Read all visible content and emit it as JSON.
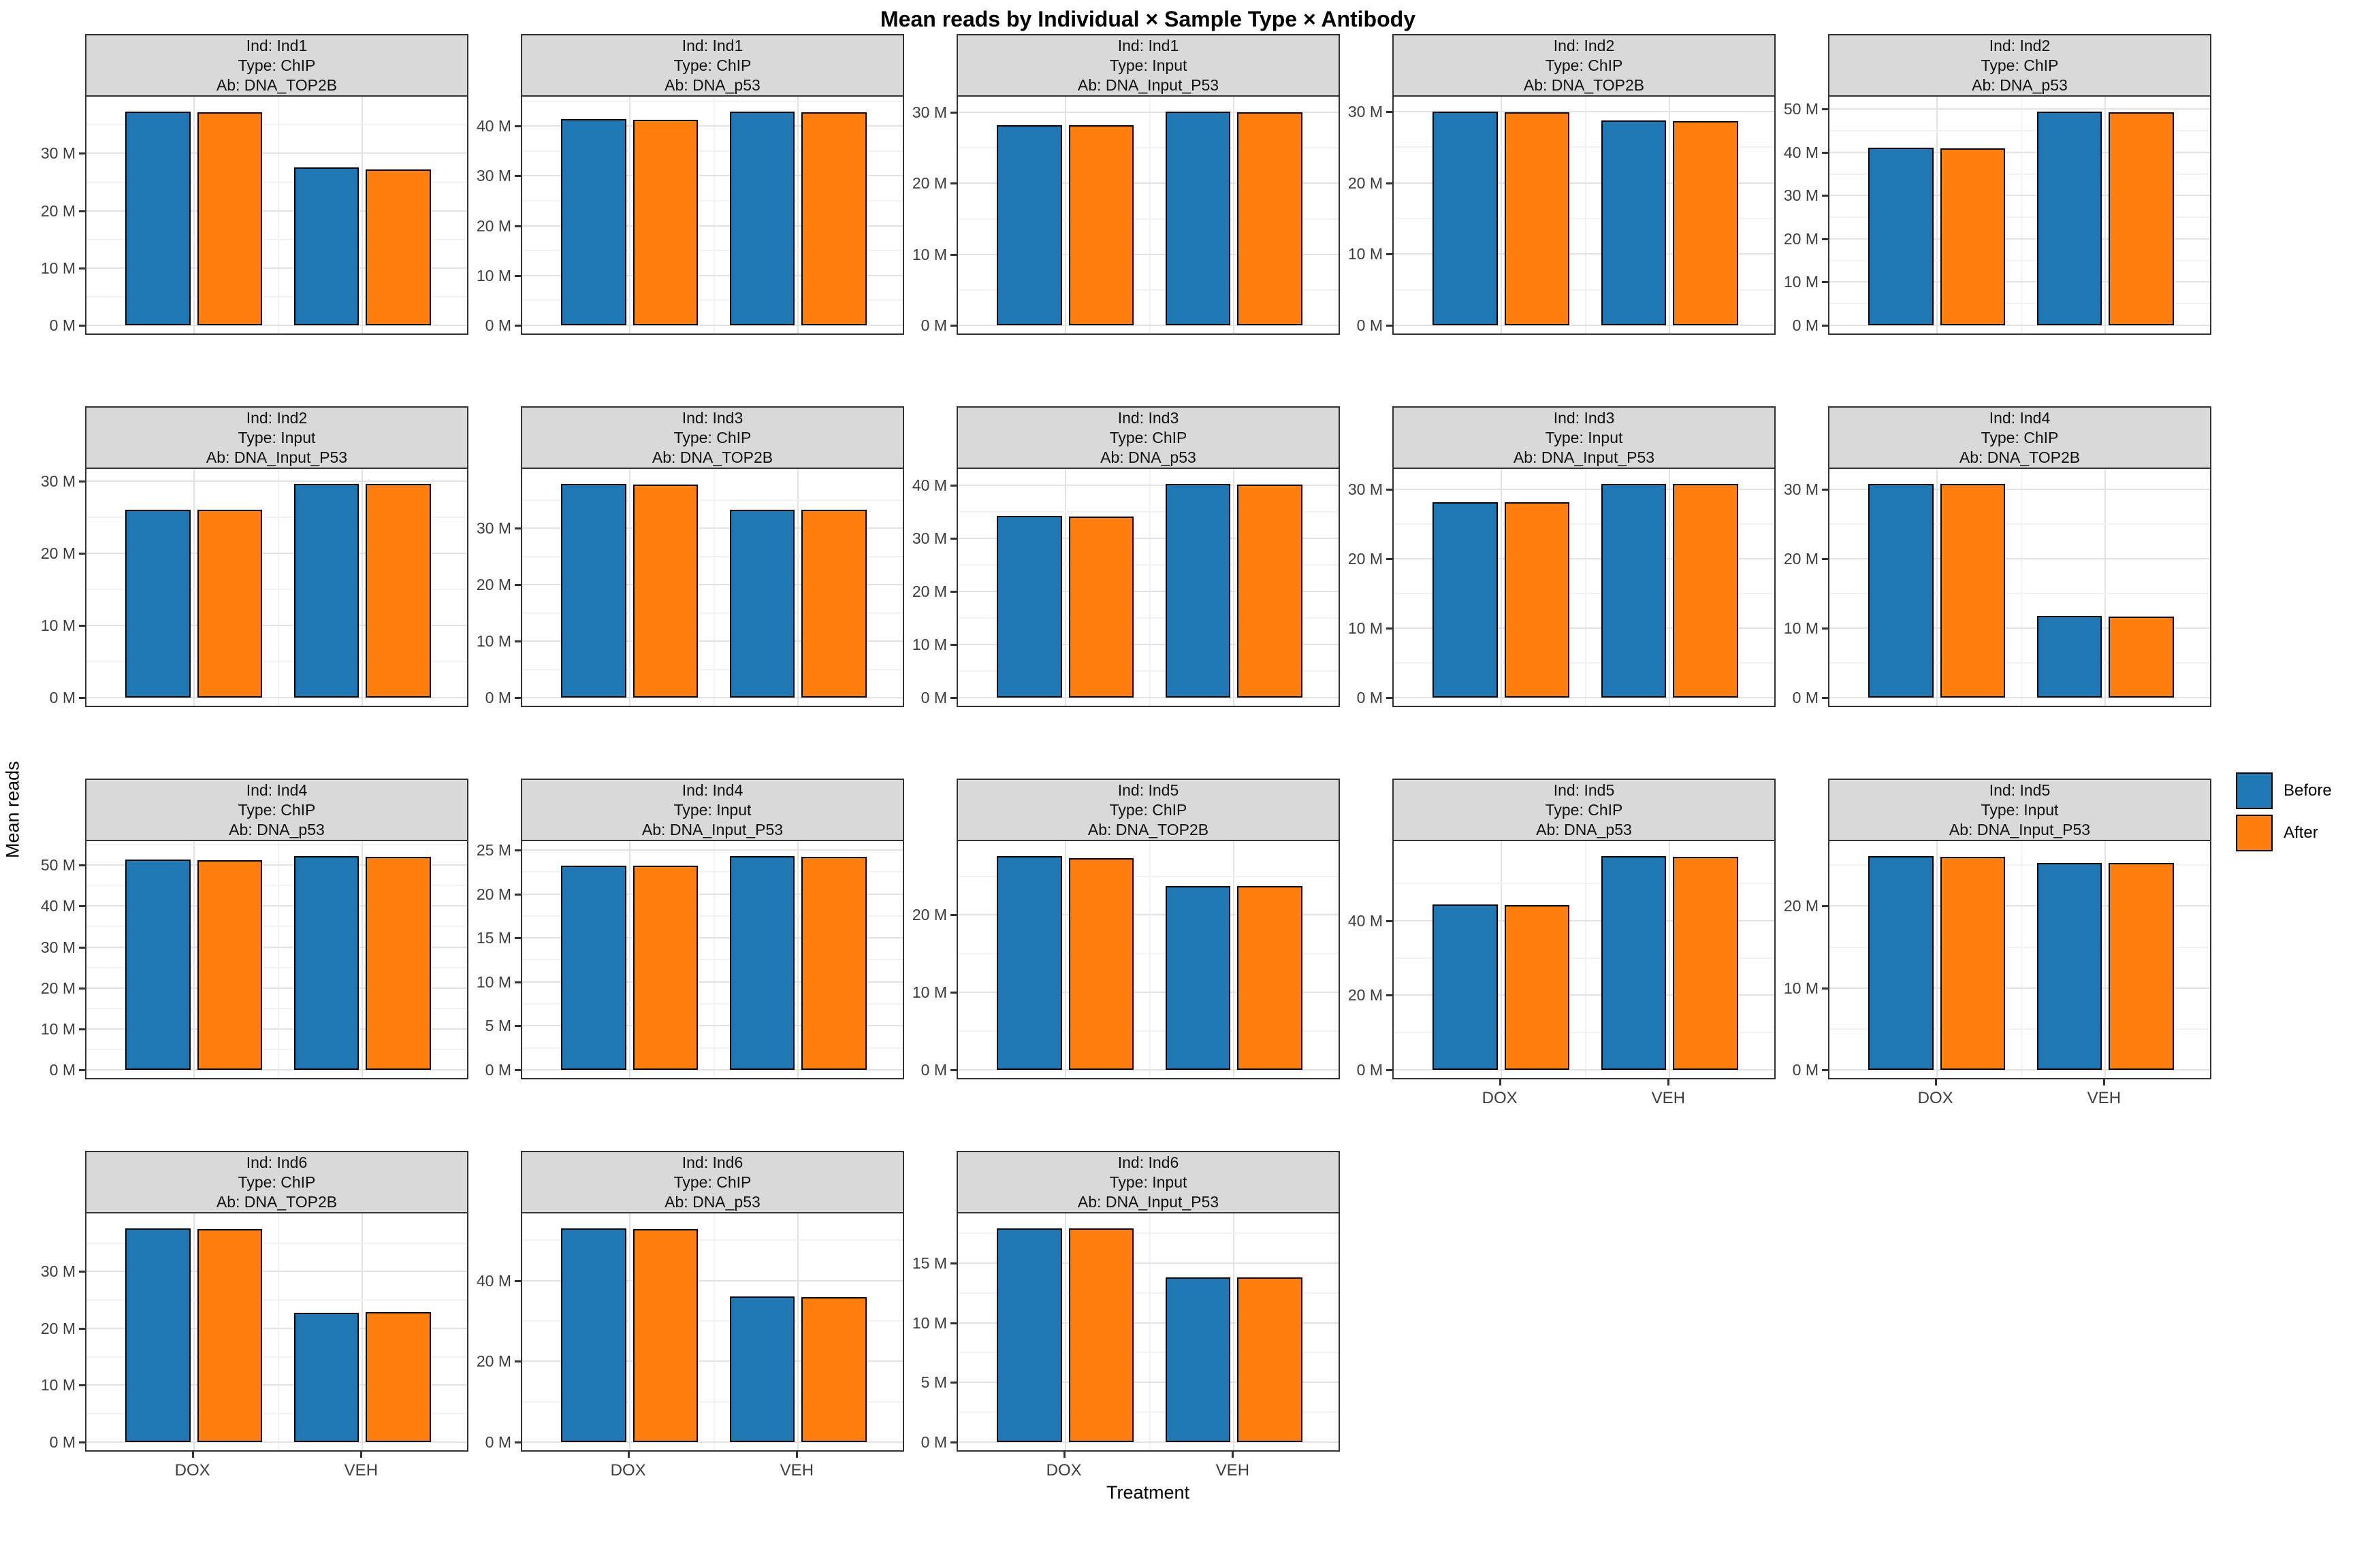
{
  "header": {
    "title": "Mean reads by Individual × Sample Type × Antibody"
  },
  "axes": {
    "y_label": "Mean reads",
    "x_label": "Treatment"
  },
  "legend": {
    "position": "right",
    "items": [
      {
        "label": "Before",
        "color": "#1f77b4"
      },
      {
        "label": "After",
        "color": "#ff7f0e"
      }
    ]
  },
  "chart_data": {
    "type": "bar",
    "categories": [
      "DOX",
      "VEH"
    ],
    "series_names": [
      "Before",
      "After"
    ],
    "value_unit": "M (millions of reads)",
    "tick_suffix": " M",
    "colors": {
      "before": "#1f77b4",
      "after": "#ff7f0e"
    },
    "facet_grid": {
      "rows": 4,
      "cols": 5,
      "free_y": true
    },
    "panels": [
      {
        "row": 0,
        "col": 0,
        "strip": [
          "Ind: Ind1",
          "Type: ChIP",
          "Ab: DNA_TOP2B"
        ],
        "yticks": [
          0,
          10,
          20,
          30
        ],
        "show_x_labels": false,
        "series": [
          {
            "name": "Before",
            "values": [
              37.3,
              27.5
            ]
          },
          {
            "name": "After",
            "values": [
              37.2,
              27.2
            ]
          }
        ]
      },
      {
        "row": 0,
        "col": 1,
        "strip": [
          "Ind: Ind1",
          "Type: ChIP",
          "Ab: DNA_p53"
        ],
        "yticks": [
          0,
          10,
          20,
          30,
          40
        ],
        "show_x_labels": false,
        "series": [
          {
            "name": "Before",
            "values": [
              41.4,
              42.9
            ]
          },
          {
            "name": "After",
            "values": [
              41.3,
              42.8
            ]
          }
        ]
      },
      {
        "row": 0,
        "col": 2,
        "strip": [
          "Ind: Ind1",
          "Type: Input",
          "Ab: DNA_Input_P53"
        ],
        "yticks": [
          0,
          10,
          20,
          30
        ],
        "show_x_labels": false,
        "series": [
          {
            "name": "Before",
            "values": [
              28.2,
              30.1
            ]
          },
          {
            "name": "After",
            "values": [
              28.2,
              30.0
            ]
          }
        ]
      },
      {
        "row": 0,
        "col": 3,
        "strip": [
          "Ind: Ind2",
          "Type: ChIP",
          "Ab: DNA_TOP2B"
        ],
        "yticks": [
          0,
          10,
          20,
          30
        ],
        "show_x_labels": false,
        "series": [
          {
            "name": "Before",
            "values": [
              30.0,
              28.8
            ]
          },
          {
            "name": "After",
            "values": [
              29.9,
              28.7
            ]
          }
        ]
      },
      {
        "row": 0,
        "col": 4,
        "strip": [
          "Ind: Ind2",
          "Type: ChIP",
          "Ab: DNA_p53"
        ],
        "yticks": [
          0,
          10,
          20,
          30,
          40,
          50
        ],
        "show_x_labels": false,
        "series": [
          {
            "name": "Before",
            "values": [
              41.0,
              49.4
            ]
          },
          {
            "name": "After",
            "values": [
              40.9,
              49.2
            ]
          }
        ]
      },
      {
        "row": 1,
        "col": 0,
        "strip": [
          "Ind: Ind2",
          "Type: Input",
          "Ab: DNA_Input_P53"
        ],
        "yticks": [
          0,
          10,
          20,
          30
        ],
        "show_x_labels": false,
        "series": [
          {
            "name": "Before",
            "values": [
              26.0,
              29.6
            ]
          },
          {
            "name": "After",
            "values": [
              26.0,
              29.6
            ]
          }
        ]
      },
      {
        "row": 1,
        "col": 1,
        "strip": [
          "Ind: Ind3",
          "Type: ChIP",
          "Ab: DNA_TOP2B"
        ],
        "yticks": [
          0,
          10,
          20,
          30
        ],
        "show_x_labels": false,
        "series": [
          {
            "name": "Before",
            "values": [
              37.9,
              33.3
            ]
          },
          {
            "name": "After",
            "values": [
              37.8,
              33.3
            ]
          }
        ]
      },
      {
        "row": 1,
        "col": 2,
        "strip": [
          "Ind: Ind3",
          "Type: ChIP",
          "Ab: DNA_p53"
        ],
        "yticks": [
          0,
          10,
          20,
          30,
          40
        ],
        "show_x_labels": false,
        "series": [
          {
            "name": "Before",
            "values": [
              34.3,
              40.3
            ]
          },
          {
            "name": "After",
            "values": [
              34.2,
              40.2
            ]
          }
        ]
      },
      {
        "row": 1,
        "col": 3,
        "strip": [
          "Ind: Ind3",
          "Type: Input",
          "Ab: DNA_Input_P53"
        ],
        "yticks": [
          0,
          10,
          20,
          30
        ],
        "show_x_labels": false,
        "series": [
          {
            "name": "Before",
            "values": [
              28.2,
              30.8
            ]
          },
          {
            "name": "After",
            "values": [
              28.2,
              30.8
            ]
          }
        ]
      },
      {
        "row": 1,
        "col": 4,
        "strip": [
          "Ind: Ind4",
          "Type: ChIP",
          "Ab: DNA_TOP2B"
        ],
        "yticks": [
          0,
          10,
          20,
          30
        ],
        "show_x_labels": false,
        "series": [
          {
            "name": "Before",
            "values": [
              30.8,
              11.8
            ]
          },
          {
            "name": "After",
            "values": [
              30.8,
              11.7
            ]
          }
        ]
      },
      {
        "row": 2,
        "col": 0,
        "strip": [
          "Ind: Ind4",
          "Type: ChIP",
          "Ab: DNA_p53"
        ],
        "yticks": [
          0,
          10,
          20,
          30,
          40,
          50
        ],
        "show_x_labels": false,
        "series": [
          {
            "name": "Before",
            "values": [
              51.3,
              52.2
            ]
          },
          {
            "name": "After",
            "values": [
              51.2,
              52.1
            ]
          }
        ]
      },
      {
        "row": 2,
        "col": 1,
        "strip": [
          "Ind: Ind4",
          "Type: Input",
          "Ab: DNA_Input_P53"
        ],
        "yticks": [
          0,
          5,
          10,
          15,
          20,
          25
        ],
        "show_x_labels": false,
        "series": [
          {
            "name": "Before",
            "values": [
              23.2,
              24.3
            ]
          },
          {
            "name": "After",
            "values": [
              23.2,
              24.2
            ]
          }
        ]
      },
      {
        "row": 2,
        "col": 2,
        "strip": [
          "Ind: Ind5",
          "Type: ChIP",
          "Ab: DNA_TOP2B"
        ],
        "yticks": [
          0,
          10,
          20
        ],
        "show_x_labels": false,
        "series": [
          {
            "name": "Before",
            "values": [
              27.6,
              23.7
            ]
          },
          {
            "name": "After",
            "values": [
              27.3,
              23.7
            ]
          }
        ]
      },
      {
        "row": 2,
        "col": 3,
        "strip": [
          "Ind: Ind5",
          "Type: ChIP",
          "Ab: DNA_p53"
        ],
        "yticks": [
          0,
          20,
          40
        ],
        "show_x_labels": true,
        "series": [
          {
            "name": "Before",
            "values": [
              44.3,
              57.3
            ]
          },
          {
            "name": "After",
            "values": [
              44.2,
              57.2
            ]
          }
        ]
      },
      {
        "row": 2,
        "col": 4,
        "strip": [
          "Ind: Ind5",
          "Type: Input",
          "Ab: DNA_Input_P53"
        ],
        "yticks": [
          0,
          10,
          20
        ],
        "show_x_labels": true,
        "series": [
          {
            "name": "Before",
            "values": [
              26.1,
              25.3
            ]
          },
          {
            "name": "After",
            "values": [
              26.0,
              25.3
            ]
          }
        ]
      },
      {
        "row": 3,
        "col": 0,
        "strip": [
          "Ind: Ind6",
          "Type: ChIP",
          "Ab: DNA_TOP2B"
        ],
        "yticks": [
          0,
          10,
          20,
          30
        ],
        "show_x_labels": true,
        "series": [
          {
            "name": "Before",
            "values": [
              37.6,
              22.8
            ]
          },
          {
            "name": "After",
            "values": [
              37.5,
              22.9
            ]
          }
        ]
      },
      {
        "row": 3,
        "col": 1,
        "strip": [
          "Ind: Ind6",
          "Type: ChIP",
          "Ab: DNA_p53"
        ],
        "yticks": [
          0,
          20,
          40
        ],
        "show_x_labels": true,
        "series": [
          {
            "name": "Before",
            "values": [
              52.9,
              36.0
            ]
          },
          {
            "name": "After",
            "values": [
              52.8,
              35.9
            ]
          }
        ]
      },
      {
        "row": 3,
        "col": 2,
        "strip": [
          "Ind: Ind6",
          "Type: Input",
          "Ab: DNA_Input_P53"
        ],
        "yticks": [
          0,
          5,
          10,
          15
        ],
        "show_x_labels": true,
        "series": [
          {
            "name": "Before",
            "values": [
              17.9,
              13.8
            ]
          },
          {
            "name": "After",
            "values": [
              17.9,
              13.8
            ]
          }
        ]
      }
    ]
  }
}
